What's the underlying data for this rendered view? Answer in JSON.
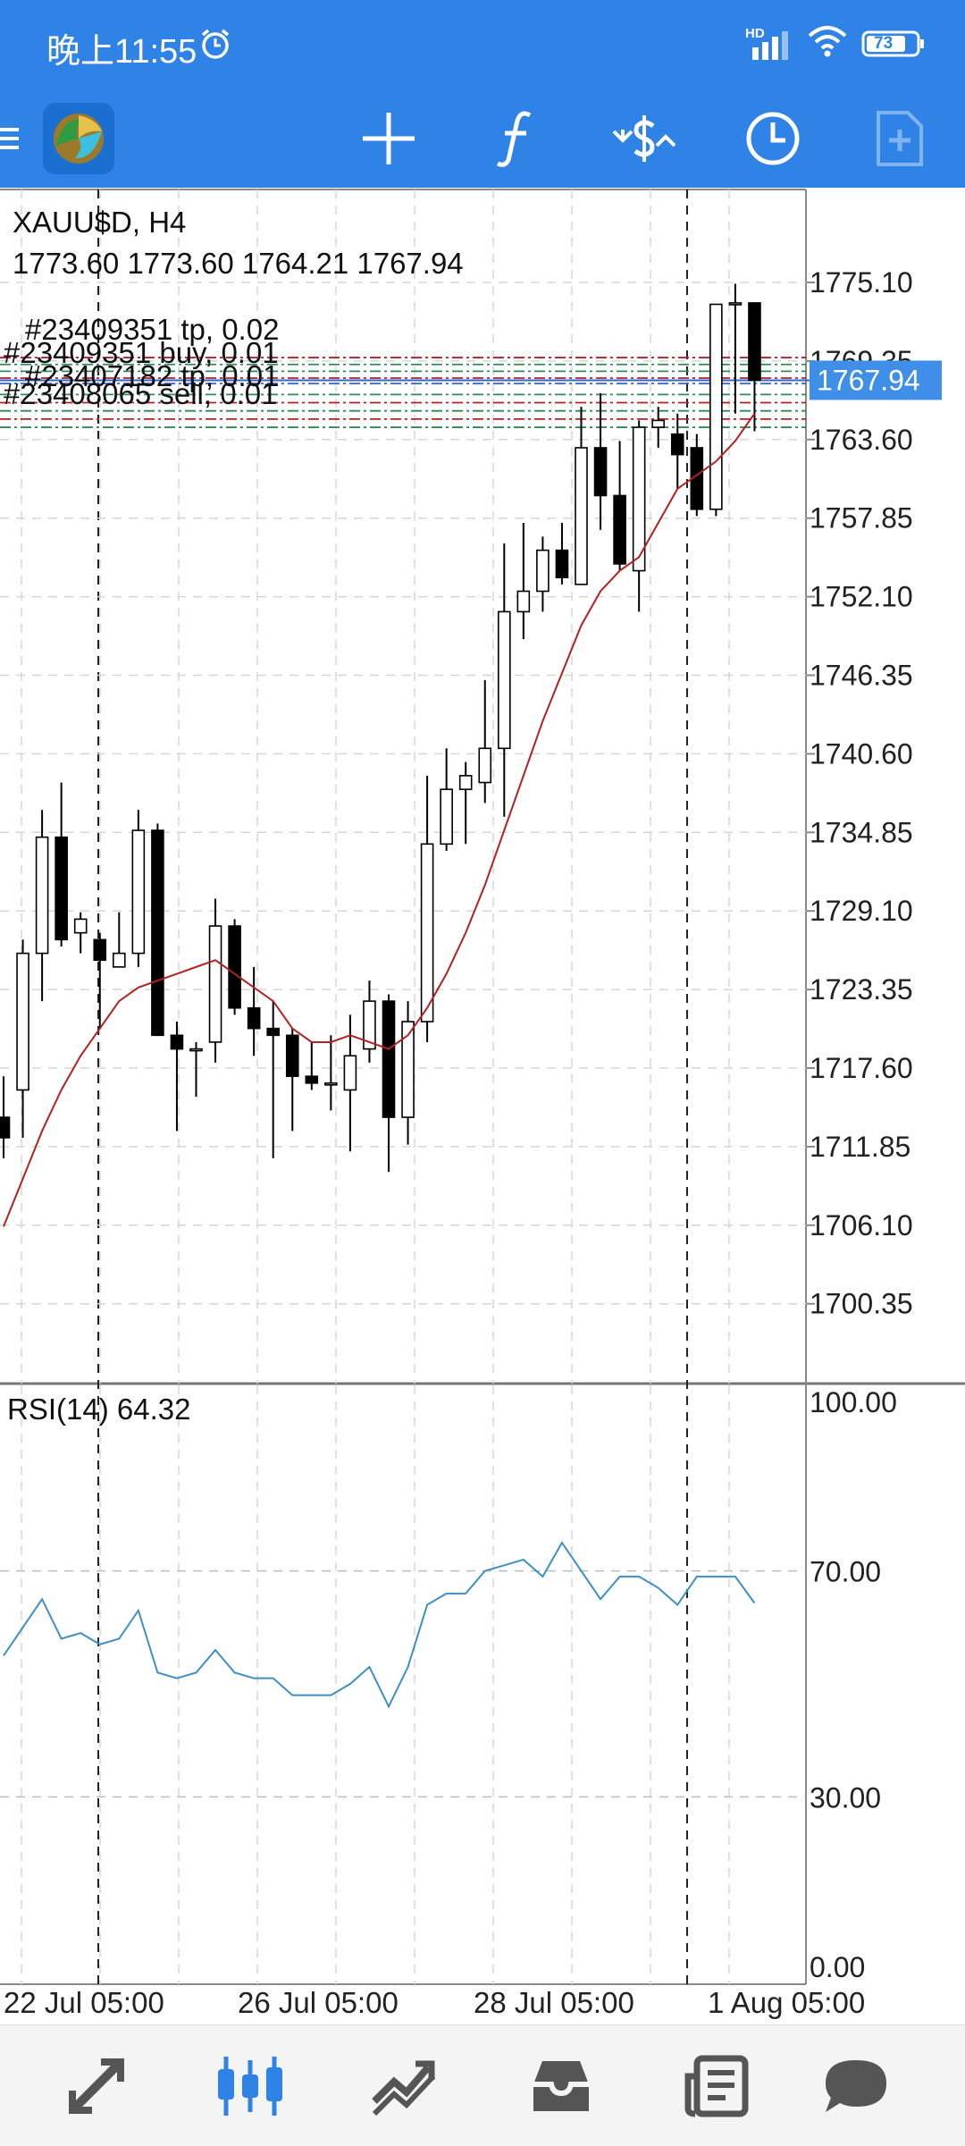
{
  "status_bar": {
    "time": "晚上11:55",
    "network_label": "HD",
    "battery": "73"
  },
  "toolbar": {
    "app_icon": "metatrader-logo-icon",
    "menu_icon": "hamburger-menu-icon",
    "buttons": [
      "crosshair-icon",
      "indicators-f-icon",
      "trade-dollar-icon",
      "clock-icon",
      "new-order-icon"
    ]
  },
  "chart": {
    "symbol_line": "XAUU$D, H4",
    "ohlc_line": "1773.60 1773.60 1764.21 1767.94",
    "current_price": "1767.94",
    "order_labels": [
      "#23409351 tp, 0.02",
      "#23409351 buy, 0.01",
      "#23407182 tp, 0.01",
      "#23408065 sell, 0.01"
    ],
    "price_ticks": [
      "1775.10",
      "1769.35",
      "1763.60",
      "1757.85",
      "1752.10",
      "1746.35",
      "1740.60",
      "1734.85",
      "1729.10",
      "1723.35",
      "1717.60",
      "1711.85",
      "1706.10",
      "1700.35"
    ],
    "rsi_label": "RSI(14) 64.32",
    "rsi_ticks": [
      "100.00",
      "70.00",
      "30.00",
      "0.00"
    ],
    "time_ticks": [
      "22 Jul 05:00",
      "26 Jul 05:00",
      "28 Jul 05:00",
      "1 Aug 05:00"
    ],
    "colors": {
      "up_body": "#ffffff",
      "down_body": "#000000",
      "ma": "#b22222",
      "rsi": "#3d8fc4",
      "price_tag": "#3f8fe8"
    }
  },
  "chart_data": {
    "type": "candlestick",
    "symbol": "XAUU$D",
    "timeframe": "H4",
    "ylim": [
      1697.5,
      1777.0
    ],
    "candles": [
      {
        "o": 1714.0,
        "h": 1717.0,
        "l": 1711.0,
        "c": 1712.5
      },
      {
        "o": 1716.0,
        "h": 1727.0,
        "l": 1712.5,
        "c": 1726.0
      },
      {
        "o": 1726.0,
        "h": 1736.5,
        "l": 1722.5,
        "c": 1734.5
      },
      {
        "o": 1734.5,
        "h": 1738.5,
        "l": 1726.5,
        "c": 1727.0
      },
      {
        "o": 1727.5,
        "h": 1729.0,
        "l": 1726.0,
        "c": 1728.5
      },
      {
        "o": 1727.0,
        "h": 1727.5,
        "l": 1720.5,
        "c": 1725.5
      },
      {
        "o": 1725.0,
        "h": 1729.0,
        "l": 1725.0,
        "c": 1726.0
      },
      {
        "o": 1726.0,
        "h": 1736.5,
        "l": 1725.0,
        "c": 1735.0
      },
      {
        "o": 1735.0,
        "h": 1735.5,
        "l": 1720.0,
        "c": 1720.0
      },
      {
        "o": 1720.0,
        "h": 1721.0,
        "l": 1713.0,
        "c": 1719.0
      },
      {
        "o": 1719.0,
        "h": 1719.5,
        "l": 1715.5,
        "c": 1719.0
      },
      {
        "o": 1719.5,
        "h": 1730.0,
        "l": 1718.0,
        "c": 1728.0
      },
      {
        "o": 1728.0,
        "h": 1728.5,
        "l": 1721.5,
        "c": 1722.0
      },
      {
        "o": 1722.0,
        "h": 1725.0,
        "l": 1718.5,
        "c": 1720.5
      },
      {
        "o": 1720.5,
        "h": 1722.5,
        "l": 1711.0,
        "c": 1720.0
      },
      {
        "o": 1720.0,
        "h": 1720.5,
        "l": 1713.0,
        "c": 1717.0
      },
      {
        "o": 1717.0,
        "h": 1719.5,
        "l": 1716.0,
        "c": 1716.5
      },
      {
        "o": 1716.5,
        "h": 1720.0,
        "l": 1714.5,
        "c": 1716.5
      },
      {
        "o": 1716.0,
        "h": 1721.5,
        "l": 1711.5,
        "c": 1718.5
      },
      {
        "o": 1719.0,
        "h": 1724.0,
        "l": 1718.0,
        "c": 1722.5
      },
      {
        "o": 1722.5,
        "h": 1723.0,
        "l": 1710.0,
        "c": 1714.0
      },
      {
        "o": 1714.0,
        "h": 1722.5,
        "l": 1712.0,
        "c": 1721.0
      },
      {
        "o": 1721.0,
        "h": 1739.0,
        "l": 1719.5,
        "c": 1734.0
      },
      {
        "o": 1734.0,
        "h": 1741.0,
        "l": 1733.5,
        "c": 1738.0
      },
      {
        "o": 1738.0,
        "h": 1740.0,
        "l": 1734.0,
        "c": 1739.0
      },
      {
        "o": 1738.5,
        "h": 1746.0,
        "l": 1737.0,
        "c": 1741.0
      },
      {
        "o": 1741.0,
        "h": 1756.0,
        "l": 1736.0,
        "c": 1751.0
      },
      {
        "o": 1751.0,
        "h": 1757.5,
        "l": 1749.0,
        "c": 1752.5
      },
      {
        "o": 1752.5,
        "h": 1756.5,
        "l": 1751.0,
        "c": 1755.5
      },
      {
        "o": 1755.5,
        "h": 1757.5,
        "l": 1753.0,
        "c": 1753.5
      },
      {
        "o": 1753.0,
        "h": 1766.0,
        "l": 1753.0,
        "c": 1763.0
      },
      {
        "o": 1763.0,
        "h": 1767.0,
        "l": 1757.0,
        "c": 1759.5
      },
      {
        "o": 1759.5,
        "h": 1763.5,
        "l": 1754.0,
        "c": 1754.5
      },
      {
        "o": 1754.0,
        "h": 1765.0,
        "l": 1751.0,
        "c": 1764.5
      },
      {
        "o": 1764.5,
        "h": 1766.0,
        "l": 1763.0,
        "c": 1765.0
      },
      {
        "o": 1764.0,
        "h": 1765.5,
        "l": 1760.0,
        "c": 1762.5
      },
      {
        "o": 1763.0,
        "h": 1764.0,
        "l": 1758.0,
        "c": 1758.5
      },
      {
        "o": 1758.5,
        "h": 1773.5,
        "l": 1758.0,
        "c": 1773.5
      },
      {
        "o": 1773.5,
        "h": 1775.0,
        "l": 1765.5,
        "c": 1773.6
      },
      {
        "o": 1773.6,
        "h": 1773.6,
        "l": 1764.21,
        "c": 1767.94
      }
    ],
    "ma": [
      1706.0,
      1709.5,
      1713.0,
      1716.0,
      1718.5,
      1720.5,
      1722.5,
      1723.5,
      1724.0,
      1724.5,
      1725.0,
      1725.5,
      1724.5,
      1723.5,
      1722.5,
      1720.5,
      1719.5,
      1719.5,
      1720.0,
      1719.5,
      1719.0,
      1720.0,
      1722.0,
      1724.5,
      1727.5,
      1731.0,
      1735.0,
      1739.0,
      1743.0,
      1746.5,
      1750.0,
      1752.5,
      1754.0,
      1755.0,
      1757.5,
      1760.0,
      1761.0,
      1762.0,
      1763.5,
      1765.5
    ],
    "rsi": [
      55,
      60,
      65,
      58,
      59,
      57,
      58,
      63,
      52,
      51,
      52,
      56,
      52,
      51,
      51,
      48,
      48,
      48,
      50,
      53,
      46,
      53,
      64,
      66,
      66,
      70,
      71,
      72,
      69,
      75,
      70,
      65,
      69,
      69,
      67,
      64,
      69,
      69,
      69,
      64.32
    ],
    "rsi_ylim": [
      0,
      100
    ],
    "horizontal_levels": [
      1769.6,
      1769.1,
      1768.6,
      1768.1,
      1767.7,
      1766.9,
      1766.3,
      1765.7,
      1765.1,
      1764.5
    ]
  }
}
